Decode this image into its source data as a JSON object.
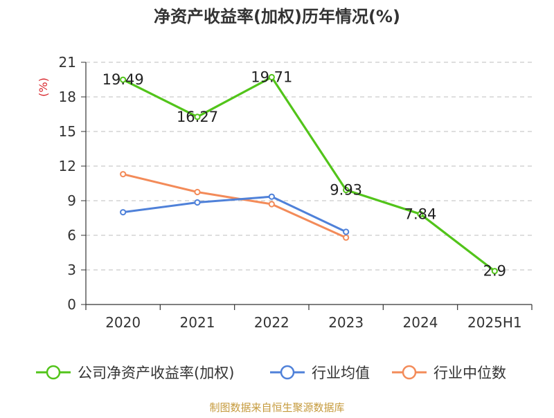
{
  "chart_data": {
    "type": "line",
    "title": "净资产收益率(加权)历年情况(%)",
    "ylabel": "(%)",
    "xlabel": "",
    "categories": [
      "2020",
      "2021",
      "2022",
      "2023",
      "2024",
      "2025H1"
    ],
    "ylim": [
      0,
      21
    ],
    "yticks": [
      0,
      3,
      6,
      9,
      12,
      15,
      18,
      21
    ],
    "grid": true,
    "legend_position": "bottom",
    "series": [
      {
        "name": "公司净资产收益率(加权)",
        "color": "#52c41a",
        "values": [
          19.49,
          16.27,
          19.71,
          9.93,
          7.84,
          2.9
        ],
        "labels": [
          "19.49",
          "16.27",
          "19.71",
          "9.93",
          "7.84",
          "2.9"
        ]
      },
      {
        "name": "行业均值",
        "color": "#4f81d9",
        "values": [
          8.0,
          8.85,
          9.35,
          6.3,
          null,
          null
        ]
      },
      {
        "name": "行业中位数",
        "color": "#f38b59",
        "values": [
          11.3,
          9.75,
          8.7,
          5.8,
          null,
          null
        ]
      }
    ]
  },
  "footer": {
    "source": "制图数据来自恒生聚源数据库",
    "color": "#c59a3c"
  }
}
